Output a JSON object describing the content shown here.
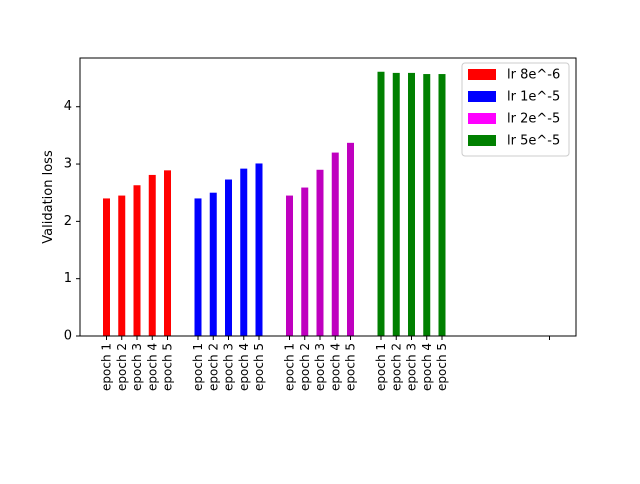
{
  "chart_data": {
    "type": "bar",
    "title": "",
    "xlabel": "",
    "ylabel": "Validation loss",
    "ylim": [
      0,
      4.85
    ],
    "yticks": [
      0,
      1,
      2,
      3,
      4
    ],
    "grid": false,
    "legend_position": "top-right",
    "categories": [
      "epoch 1",
      "epoch 2",
      "epoch 3",
      "epoch 4",
      "epoch 5"
    ],
    "series": [
      {
        "name": "lr 8e^-6",
        "color": "#ff0000",
        "values": [
          2.4,
          2.45,
          2.63,
          2.81,
          2.89
        ]
      },
      {
        "name": "lr 1e^-5",
        "color": "#0000ff",
        "values": [
          2.4,
          2.5,
          2.73,
          2.92,
          3.01
        ]
      },
      {
        "name": "lr 2e^-5",
        "color": "#ff00ff",
        "bar_color": "#bf00bf",
        "values": [
          2.45,
          2.59,
          2.9,
          3.2,
          3.37
        ]
      },
      {
        "name": "lr 5e^-5",
        "color": "#008000",
        "values": [
          4.61,
          4.59,
          4.59,
          4.57,
          4.57
        ]
      }
    ]
  }
}
